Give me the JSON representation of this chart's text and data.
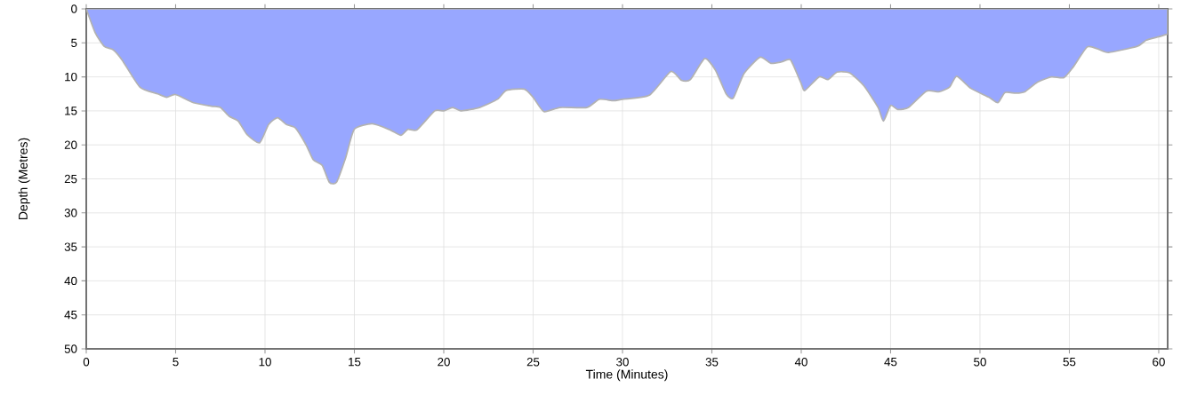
{
  "chart_data": {
    "type": "area",
    "xlabel": "Time (Minutes)",
    "ylabel": "Depth (Metres)",
    "x": [
      0,
      0.5,
      1,
      1.5,
      2,
      3,
      4,
      4.5,
      5,
      6,
      7,
      7.5,
      8,
      8.5,
      9,
      9.7,
      10.2,
      10.7,
      11.2,
      11.7,
      12.3,
      12.7,
      13.2,
      13.6,
      14,
      14.5,
      15,
      16,
      17,
      17.6,
      18,
      18.5,
      19.5,
      20,
      20.5,
      21,
      22,
      23,
      23.5,
      24.5,
      25,
      25.6,
      26.5,
      28,
      28.7,
      29.5,
      30,
      31.5,
      32.7,
      33.3,
      33.8,
      34.6,
      35.2,
      35.8,
      36.2,
      36.8,
      37.7,
      38.3,
      38.9,
      39.4,
      40,
      40.2,
      41,
      41.5,
      42,
      42.7,
      43.5,
      44.3,
      44.6,
      45,
      45.4,
      46,
      47,
      47.7,
      48.3,
      48.7,
      49.5,
      50.5,
      51,
      51.4,
      52,
      52.5,
      53.2,
      54,
      54.7,
      55.2,
      56,
      56.6,
      57.2,
      58.8,
      59.3,
      60,
      60.5
    ],
    "series": [
      {
        "color": "#98a7ff",
        "values": [
          0,
          3.5,
          5.5,
          6,
          7.5,
          11.5,
          12.5,
          13,
          12.6,
          13.8,
          14.3,
          14.5,
          15.8,
          16.5,
          18.5,
          19.7,
          17,
          16,
          17,
          17.5,
          20,
          22.2,
          23,
          25.5,
          25.5,
          22,
          17.7,
          16.9,
          17.8,
          18.6,
          17.7,
          17.8,
          15,
          15,
          14.5,
          15,
          14.5,
          13.3,
          12,
          11.8,
          13,
          15.1,
          14.5,
          14.5,
          13.3,
          13.5,
          13.3,
          12.7,
          9.2,
          10.5,
          10.4,
          7.3,
          9,
          12.5,
          13.1,
          9.5,
          7.1,
          8,
          7.8,
          7.5,
          11,
          12,
          10,
          10.4,
          9.3,
          9.4,
          11.3,
          14.5,
          16.5,
          14.2,
          14.8,
          14.5,
          12.1,
          12.2,
          11.5,
          9.9,
          11.7,
          13,
          13.8,
          12.3,
          12.4,
          12.2,
          10.8,
          10,
          10.1,
          8.6,
          5.6,
          5.9,
          6.4,
          5.5,
          4.6,
          4.1,
          3.7
        ]
      }
    ],
    "xlim": [
      0,
      60.5
    ],
    "ylim": [
      50,
      0
    ],
    "xticks": [
      0,
      5,
      10,
      15,
      20,
      25,
      30,
      35,
      40,
      45,
      50,
      55,
      60
    ],
    "yticks": [
      0,
      5,
      10,
      15,
      20,
      25,
      30,
      35,
      40,
      45,
      50
    ],
    "grid": true
  }
}
